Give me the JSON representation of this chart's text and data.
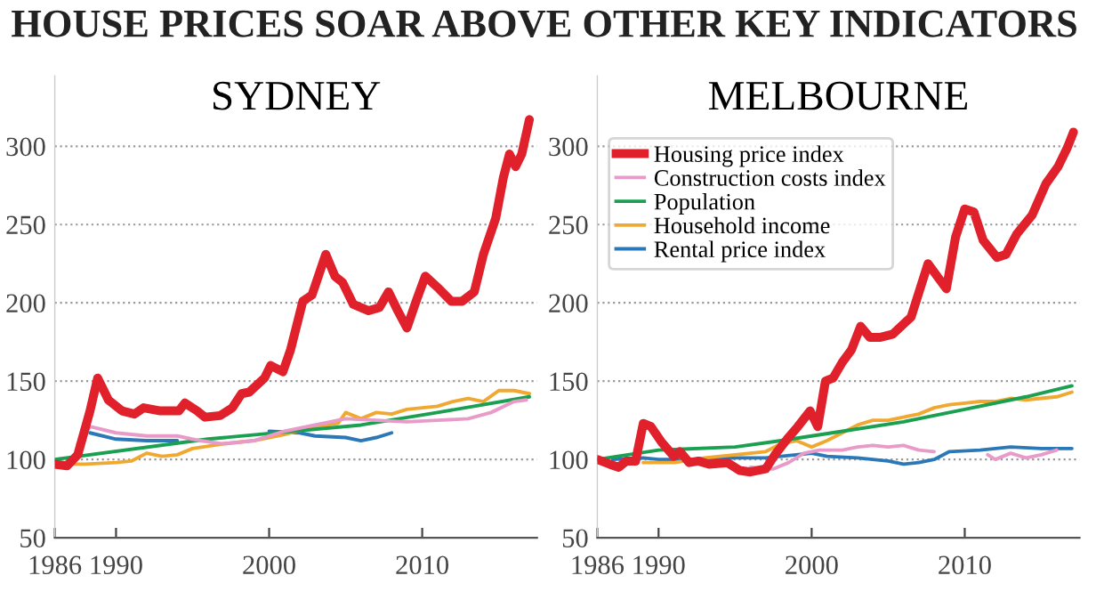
{
  "chart_data": [
    {
      "type": "line",
      "title": "SYDNEY",
      "annotations": [
        "HOUSE PRICES SOAR ABOVE OTHER KEY INDICATORS"
      ],
      "xlim": [
        1986,
        2017.5
      ],
      "xticks": [
        1986,
        1990,
        2000,
        2010
      ],
      "ylim": [
        50,
        345
      ],
      "yticks": [
        50,
        100,
        150,
        200,
        250,
        300
      ],
      "grid": "y",
      "legend": false,
      "series": [
        {
          "color": "#e0202a",
          "x": [
            1986,
            1986.8,
            1987.5,
            1988.3,
            1988.8,
            1989.5,
            1990.4,
            1991.2,
            1991.8,
            1992.9,
            1994.1,
            1994.5,
            1995.3,
            1995.8,
            1996.8,
            1997.6,
            1998.2,
            1998.7,
            1999.7,
            2000.1,
            2000.9,
            2001.4,
            2002.2,
            2002.8,
            2003.7,
            2004.3,
            2004.8,
            2005.5,
            2006.5,
            2007.2,
            2007.8,
            2008.4,
            2009,
            2009.6,
            2010.2,
            2011.1,
            2011.9,
            2012.6,
            2013.4,
            2014,
            2014.8,
            2015.3,
            2015.7,
            2016.1,
            2016.5,
            2017
          ],
          "values": [
            97,
            96,
            103,
            131,
            152,
            138,
            131,
            129,
            133,
            131,
            131,
            136,
            131,
            127,
            128,
            133,
            142,
            143,
            152,
            160,
            156,
            170,
            201,
            205,
            231,
            217,
            213,
            199,
            195,
            197,
            207,
            195,
            184,
            201,
            217,
            209,
            201,
            201,
            207,
            231,
            254,
            280,
            295,
            287,
            295,
            317
          ]
        },
        {
          "color": "#e89ac8",
          "x": [
            1987.5,
            1988.3,
            1990,
            1992,
            1994,
            1995.5,
            1997,
            1999,
            2001,
            2003,
            2005,
            2007,
            2009,
            2011,
            2013,
            2014.5,
            2016,
            2016.8
          ],
          "values": [
            110,
            121,
            117,
            115,
            115,
            112,
            110,
            112,
            118,
            122,
            126,
            125,
            124,
            125,
            126,
            130,
            137,
            138
          ]
        },
        {
          "color": "#1aa050",
          "x": [
            1986,
            1996,
            2006,
            2011,
            2017
          ],
          "values": [
            100,
            113,
            122,
            130,
            140
          ]
        },
        {
          "color": "#f0a830",
          "x": [
            1987,
            1988,
            1990,
            1991,
            1992,
            1993,
            1994,
            1995,
            1997,
            1999,
            2001,
            2003,
            2004.5,
            2005,
            2006,
            2007,
            2008,
            2009,
            2011,
            2012,
            2013,
            2014,
            2015,
            2016,
            2017
          ],
          "values": [
            97,
            97,
            98,
            99,
            104,
            102,
            103,
            107,
            110,
            112,
            116,
            121,
            123,
            130,
            126,
            130,
            129,
            132,
            134,
            137,
            139,
            137,
            144,
            144,
            142
          ]
        },
        {
          "color": "#2a78b8",
          "x": [
            1988.3,
            1990,
            1992,
            1994,
            1997,
            2000,
            2002,
            2003,
            2005,
            2006,
            2007,
            2008
          ],
          "values": [
            117,
            113,
            112,
            112,
            null,
            118,
            117,
            115,
            114,
            112,
            114,
            117
          ]
        }
      ]
    },
    {
      "type": "line",
      "title": "MELBOURNE",
      "xlim": [
        1986,
        2017.5
      ],
      "xticks": [
        1986,
        1990,
        2000,
        2010
      ],
      "ylim": [
        50,
        345
      ],
      "yticks": [
        50,
        100,
        150,
        200,
        250,
        300
      ],
      "grid": "y",
      "legend": "top left",
      "series": [
        {
          "name": "Housing price index",
          "color": "#e0202a",
          "x": [
            1986,
            1986.8,
            1987.4,
            1987.9,
            1988.5,
            1989,
            1989.5,
            1990.2,
            1991,
            1991.4,
            1992,
            1992.6,
            1993.3,
            1994.5,
            1995.3,
            1996,
            1997,
            1997.6,
            1998.4,
            1999.1,
            1999.9,
            2000.4,
            2000.9,
            2001.4,
            2002,
            2002.6,
            2003.2,
            2003.8,
            2004.5,
            2005.3,
            2006.5,
            2007.6,
            2008.8,
            2009.4,
            2010,
            2010.6,
            2011.2,
            2012.1,
            2012.7,
            2013.4,
            2014.4,
            2015.3,
            2016.1,
            2016.7,
            2017.1
          ],
          "values": [
            100,
            97,
            95,
            99,
            99,
            123,
            121,
            111,
            102,
            105,
            98,
            99,
            97,
            98,
            93,
            92,
            94,
            103,
            113,
            121,
            131,
            121,
            150,
            152,
            162,
            170,
            185,
            178,
            178,
            180,
            191,
            225,
            209,
            242,
            260,
            258,
            240,
            229,
            231,
            244,
            256,
            276,
            287,
            299,
            309
          ]
        },
        {
          "name": "Construction costs index",
          "color": "#e89ac8",
          "x": [
            1996,
            1997.5,
            1998.5,
            1999.5,
            2000.5,
            2002,
            2003,
            2004,
            2005,
            2006,
            2007,
            2008,
            2010,
            2011.5,
            2012,
            2013,
            2014,
            2015,
            2016
          ],
          "values": [
            95,
            94,
            98,
            104,
            106,
            106,
            108,
            109,
            108,
            109,
            106,
            105,
            null,
            103,
            100,
            104,
            101,
            103,
            106
          ]
        },
        {
          "name": "Population",
          "color": "#1aa050",
          "x": [
            1986,
            1988,
            1990,
            1995,
            1998,
            2002,
            2006,
            2010,
            2014,
            2017
          ],
          "values": [
            100,
            103,
            106,
            108,
            112,
            118,
            124,
            132,
            140,
            147
          ]
        },
        {
          "name": "Household income",
          "color": "#f0a830",
          "x": [
            1989,
            1991,
            1993,
            1995,
            1997,
            1998,
            1999,
            2000,
            2001,
            2002,
            2003,
            2004,
            2005,
            2006,
            2007,
            2008,
            2009,
            2010,
            2011,
            2012,
            2013,
            2014,
            2015,
            2016,
            2017
          ],
          "values": [
            98,
            98,
            101,
            103,
            105,
            110,
            112,
            108,
            112,
            117,
            122,
            125,
            125,
            127,
            129,
            133,
            135,
            136,
            137,
            137,
            139,
            138,
            139,
            140,
            143
          ]
        },
        {
          "name": "Rental price index",
          "color": "#2a78b8",
          "x": [
            1987,
            1989,
            1990,
            1993,
            1995,
            1997,
            1999,
            2000,
            2001,
            2003,
            2005,
            2006,
            2007,
            2008,
            2009,
            2011,
            2013,
            2015,
            2017
          ],
          "values": [
            100,
            101,
            100,
            100,
            101,
            101,
            103,
            104,
            102,
            101,
            99,
            97,
            98,
            100,
            105,
            106,
            108,
            107,
            107
          ]
        }
      ]
    }
  ]
}
